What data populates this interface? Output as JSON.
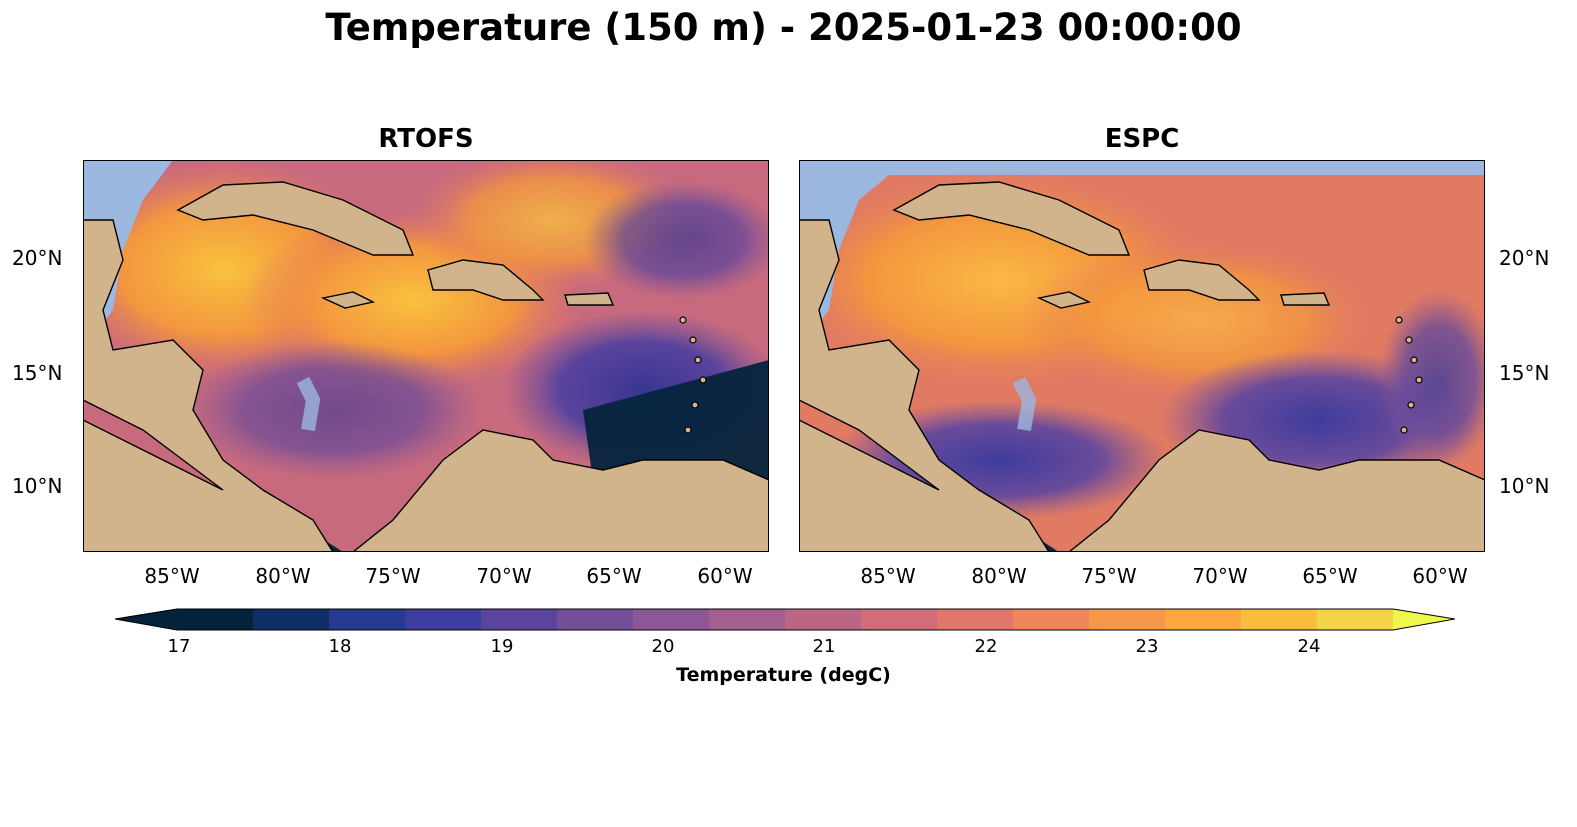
{
  "title": "Temperature (150 m) - 2025-01-23 00:00:00",
  "panels": [
    {
      "name": "RTOFS"
    },
    {
      "name": "ESPC"
    }
  ],
  "lat_labels": [
    "20°N",
    "15°N",
    "10°N"
  ],
  "lon_labels": [
    "85°W",
    "80°W",
    "75°W",
    "70°W",
    "65°W",
    "60°W"
  ],
  "colorbar": {
    "label": "Temperature (degC)",
    "ticks": [
      "17",
      "18",
      "19",
      "20",
      "21",
      "22",
      "23",
      "24"
    ],
    "colors": [
      "#04223a",
      "#0e2e66",
      "#263a8f",
      "#3e3c9d",
      "#5a449d",
      "#734f99",
      "#8b5795",
      "#a45f8f",
      "#bc6685",
      "#d16d79",
      "#e2766b",
      "#ef855b",
      "#f8974a",
      "#fca83e",
      "#f9bd3c",
      "#f2d349"
    ],
    "under_color": "#04223a",
    "over_color": "#eef74e"
  },
  "colors": {
    "land": "#d2b48c",
    "water_masked": "#9cb7e0",
    "border": "#000000"
  }
}
